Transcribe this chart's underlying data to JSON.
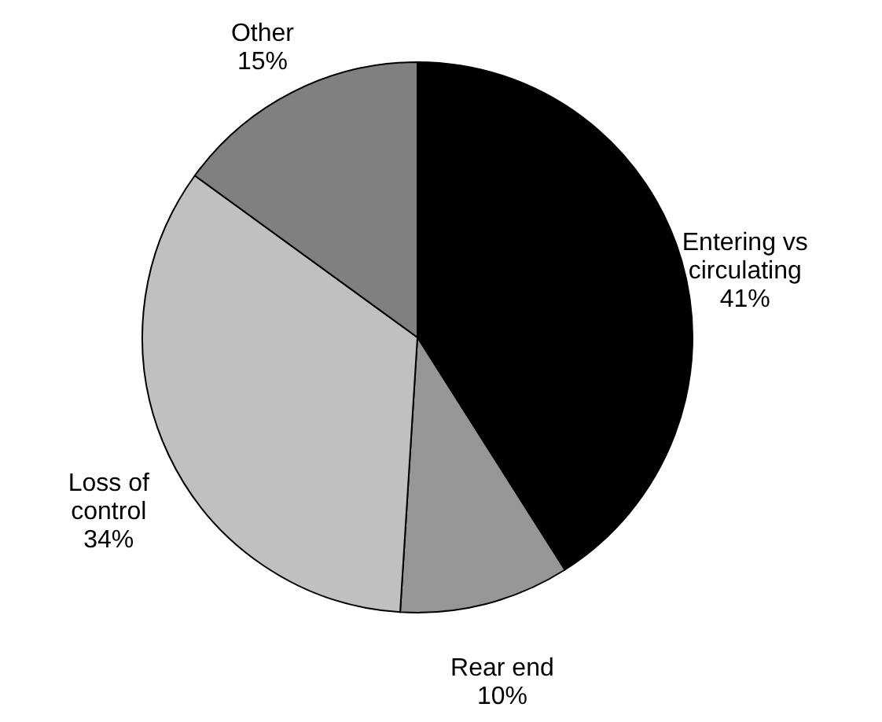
{
  "chart_data": {
    "type": "pie",
    "categories": [
      "Entering vs circulating",
      "Rear end",
      "Loss of control",
      "Other"
    ],
    "values": [
      41,
      10,
      34,
      15
    ],
    "value_labels": [
      "41%",
      "10%",
      "34%",
      "15%"
    ],
    "colors": [
      "#000000",
      "#969696",
      "#c0c0c0",
      "#808080"
    ],
    "legend": false
  }
}
